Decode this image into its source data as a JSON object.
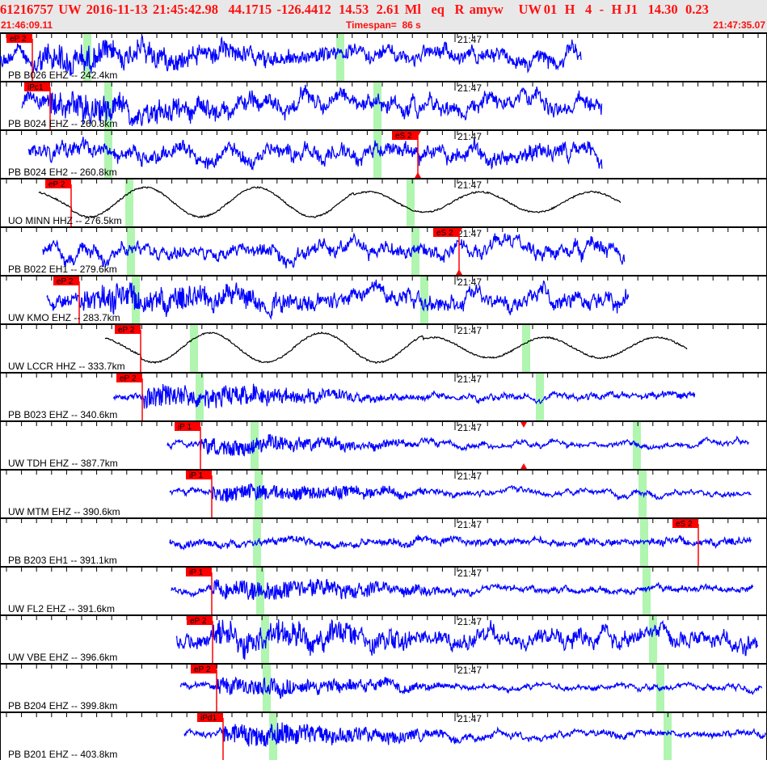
{
  "header": {
    "title": "61216757  UW  2016-11-13  21:45:42.98    44.1715  -126.4412   14.53   2.61  Ml    eq    R  amyw      UW 01   H    4   -   H J1    14.30   0.23",
    "start_time": "21:46:09.11",
    "timespan": "Timespan=  86 s",
    "end_time": "21:47:35.07"
  },
  "time_marker": "21:47",
  "colors": {
    "header_text": "#ff1010",
    "header_bg": "#e8e8e8",
    "trace_short_period": "#0000ff",
    "trace_broadband": "#000000",
    "pick": "#ff0000",
    "predicted_phase": "#b0f5b0"
  },
  "channels": [
    {
      "label": "PB B026 EHZ -- 242.4km",
      "pick": "eP 2"
    },
    {
      "label": "PB B024 EHZ -- 260.8km",
      "pick": "iPc1"
    },
    {
      "label": "PB B024 EH2 -- 260.8km",
      "pick": "eS 2"
    },
    {
      "label": "UO MINN HHZ -- 276.5km",
      "pick": "eP 2"
    },
    {
      "label": "PB B022 EH1 -- 279.6km",
      "pick": "eS 2"
    },
    {
      "label": "UW KMO EHZ -- 283.7km",
      "pick": "eP 2"
    },
    {
      "label": "UW LCCR HHZ -- 333.7km",
      "pick": "eP 2"
    },
    {
      "label": "PB B023 EHZ -- 340.6km",
      "pick": "eP 2"
    },
    {
      "label": "UW TDH EHZ -- 387.7km",
      "pick": "iP 1"
    },
    {
      "label": "UW MTM EHZ -- 390.6km",
      "pick": "iP 1"
    },
    {
      "label": "PB B203 EH1 -- 391.1km",
      "pick": "eS 2"
    },
    {
      "label": "UW FL2 EHZ -- 391.6km",
      "pick": "iP 1"
    },
    {
      "label": "UW VBE EHZ -- 396.6km",
      "pick": "eP 2"
    },
    {
      "label": "PB B204 EHZ -- 399.8km",
      "pick": "eP 2"
    },
    {
      "label": "PB B201 EHZ -- 403.8km",
      "pick": "iPd1"
    }
  ]
}
